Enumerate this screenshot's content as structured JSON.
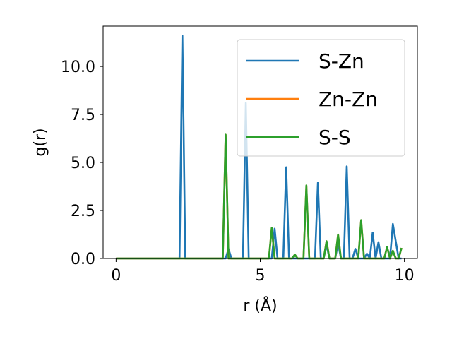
{
  "chart_data": {
    "type": "line",
    "xlabel": "r (Å)",
    "ylabel": "g(r)",
    "xlim": [
      -0.45,
      10.45
    ],
    "ylim": [
      0,
      12.1
    ],
    "xticks": [
      0,
      5,
      10
    ],
    "yticks": [
      0.0,
      2.5,
      5.0,
      7.5,
      10.0
    ],
    "xtick_labels": [
      "0",
      "5",
      "10"
    ],
    "ytick_labels": [
      "0.0",
      "2.5",
      "5.0",
      "7.5",
      "10.0"
    ],
    "legend_position": "top-right",
    "grid": false,
    "series": [
      {
        "name": "S-Zn",
        "color": "#1f77b4",
        "x": [
          0,
          2.2,
          2.3,
          2.4,
          3.8,
          3.9,
          4.0,
          4.4,
          4.5,
          4.6,
          5.4,
          5.5,
          5.6,
          5.8,
          5.9,
          6.0,
          6.9,
          7.0,
          7.1,
          7.2,
          7.3,
          7.4,
          7.6,
          7.7,
          7.8,
          7.9,
          8.0,
          8.1,
          8.2,
          8.3,
          8.4,
          8.6,
          8.7,
          8.8,
          8.9,
          9.0,
          9.1,
          9.2,
          9.5,
          9.6,
          9.7,
          9.8,
          9.9
        ],
        "y": [
          0,
          0,
          11.6,
          0,
          0,
          0.5,
          0,
          0,
          8.1,
          0,
          0,
          1.55,
          0,
          0,
          4.75,
          0,
          0,
          3.95,
          0,
          0,
          0.7,
          0,
          0,
          0.8,
          0,
          0,
          4.8,
          0,
          0,
          0.5,
          0,
          0,
          0.25,
          0,
          1.35,
          0,
          0.85,
          0,
          0,
          1.8,
          0.9,
          0,
          0
        ]
      },
      {
        "name": "Zn-Zn",
        "color": "#ff7f0e",
        "x": [
          0,
          3.7,
          3.8,
          3.9,
          5.3,
          5.4,
          5.5,
          6.1,
          6.2,
          6.3,
          6.5,
          6.6,
          6.7,
          7.2,
          7.3,
          7.4,
          7.6,
          7.7,
          7.8,
          8.4,
          8.5,
          8.6,
          9.3,
          9.4,
          9.5,
          9.6,
          9.7,
          9.8,
          9.9
        ],
        "y": [
          0,
          0,
          6.45,
          0,
          0,
          1.6,
          0,
          0,
          0.2,
          0,
          0,
          3.8,
          0,
          0,
          0.9,
          0,
          0,
          1.25,
          0,
          0,
          2.0,
          0,
          0,
          0.6,
          0,
          0.4,
          0,
          0,
          0.55
        ]
      },
      {
        "name": "S-S",
        "color": "#2ca02c",
        "x": [
          0,
          3.7,
          3.8,
          3.9,
          5.3,
          5.4,
          5.5,
          6.1,
          6.2,
          6.3,
          6.5,
          6.6,
          6.7,
          7.2,
          7.3,
          7.4,
          7.6,
          7.7,
          7.8,
          8.4,
          8.5,
          8.6,
          9.3,
          9.4,
          9.5,
          9.6,
          9.7,
          9.8,
          9.9
        ],
        "y": [
          0,
          0,
          6.45,
          0,
          0,
          1.6,
          0,
          0,
          0.2,
          0,
          0,
          3.8,
          0,
          0,
          0.9,
          0,
          0,
          1.25,
          0,
          0,
          2.0,
          0,
          0,
          0.6,
          0,
          0.4,
          0,
          0,
          0.55
        ]
      }
    ]
  }
}
